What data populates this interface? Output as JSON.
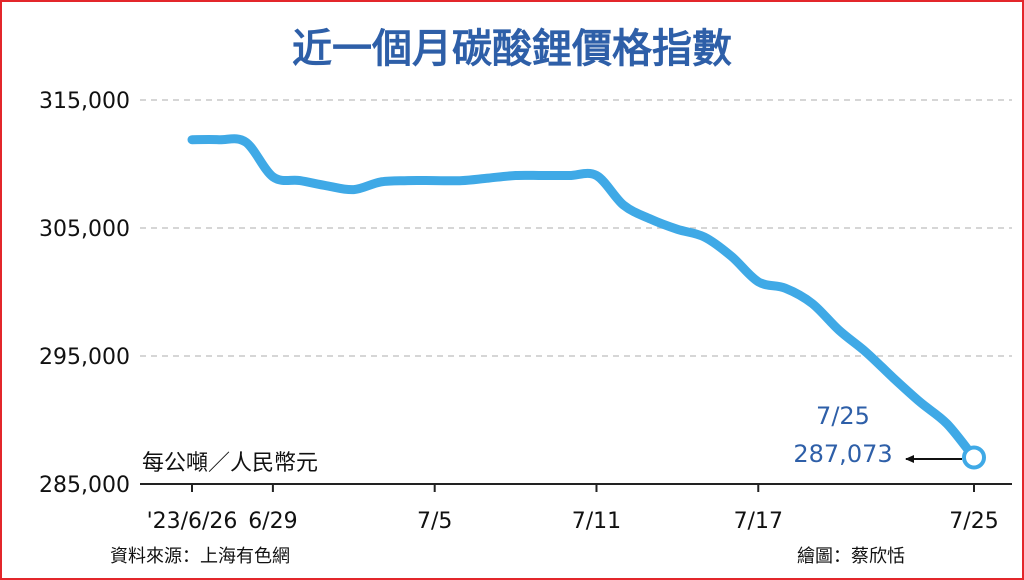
{
  "chart_data": {
    "type": "line",
    "title": "近一個月碳酸鋰價格指數",
    "unit_label": "每公噸／人民幣元",
    "source": "資料來源：上海有色網",
    "credit": "繪圖：蔡欣恬",
    "ylim": [
      285000,
      315000
    ],
    "yticks": [
      315000,
      305000,
      295000,
      285000
    ],
    "ytick_labels": [
      "315,000",
      "305,000",
      "295,000",
      "285,000"
    ],
    "grid": true,
    "xtick_labels": [
      "'23/6/26",
      "6/29",
      "7/5",
      "7/11",
      "7/17",
      "7/25"
    ],
    "xtick_days": [
      0,
      3,
      9,
      15,
      21,
      29
    ],
    "series": [
      {
        "color": "#3fa9e6",
        "x": [
          0,
          1,
          2,
          3,
          4,
          5,
          6,
          7,
          8,
          9,
          10,
          11,
          12,
          13,
          14,
          15,
          16,
          17,
          18,
          19,
          20,
          21,
          22,
          23,
          24,
          25,
          26,
          27,
          28,
          29
        ],
        "y": [
          311900,
          311900,
          311700,
          309000,
          308700,
          308300,
          308000,
          308600,
          308700,
          308700,
          308700,
          308900,
          309100,
          309100,
          309100,
          309100,
          306800,
          305700,
          304900,
          304300,
          302800,
          300800,
          300300,
          299100,
          297000,
          295300,
          293300,
          291400,
          289700,
          287073
        ]
      }
    ],
    "annotation": {
      "date": "7/25",
      "value": "287,073"
    }
  }
}
